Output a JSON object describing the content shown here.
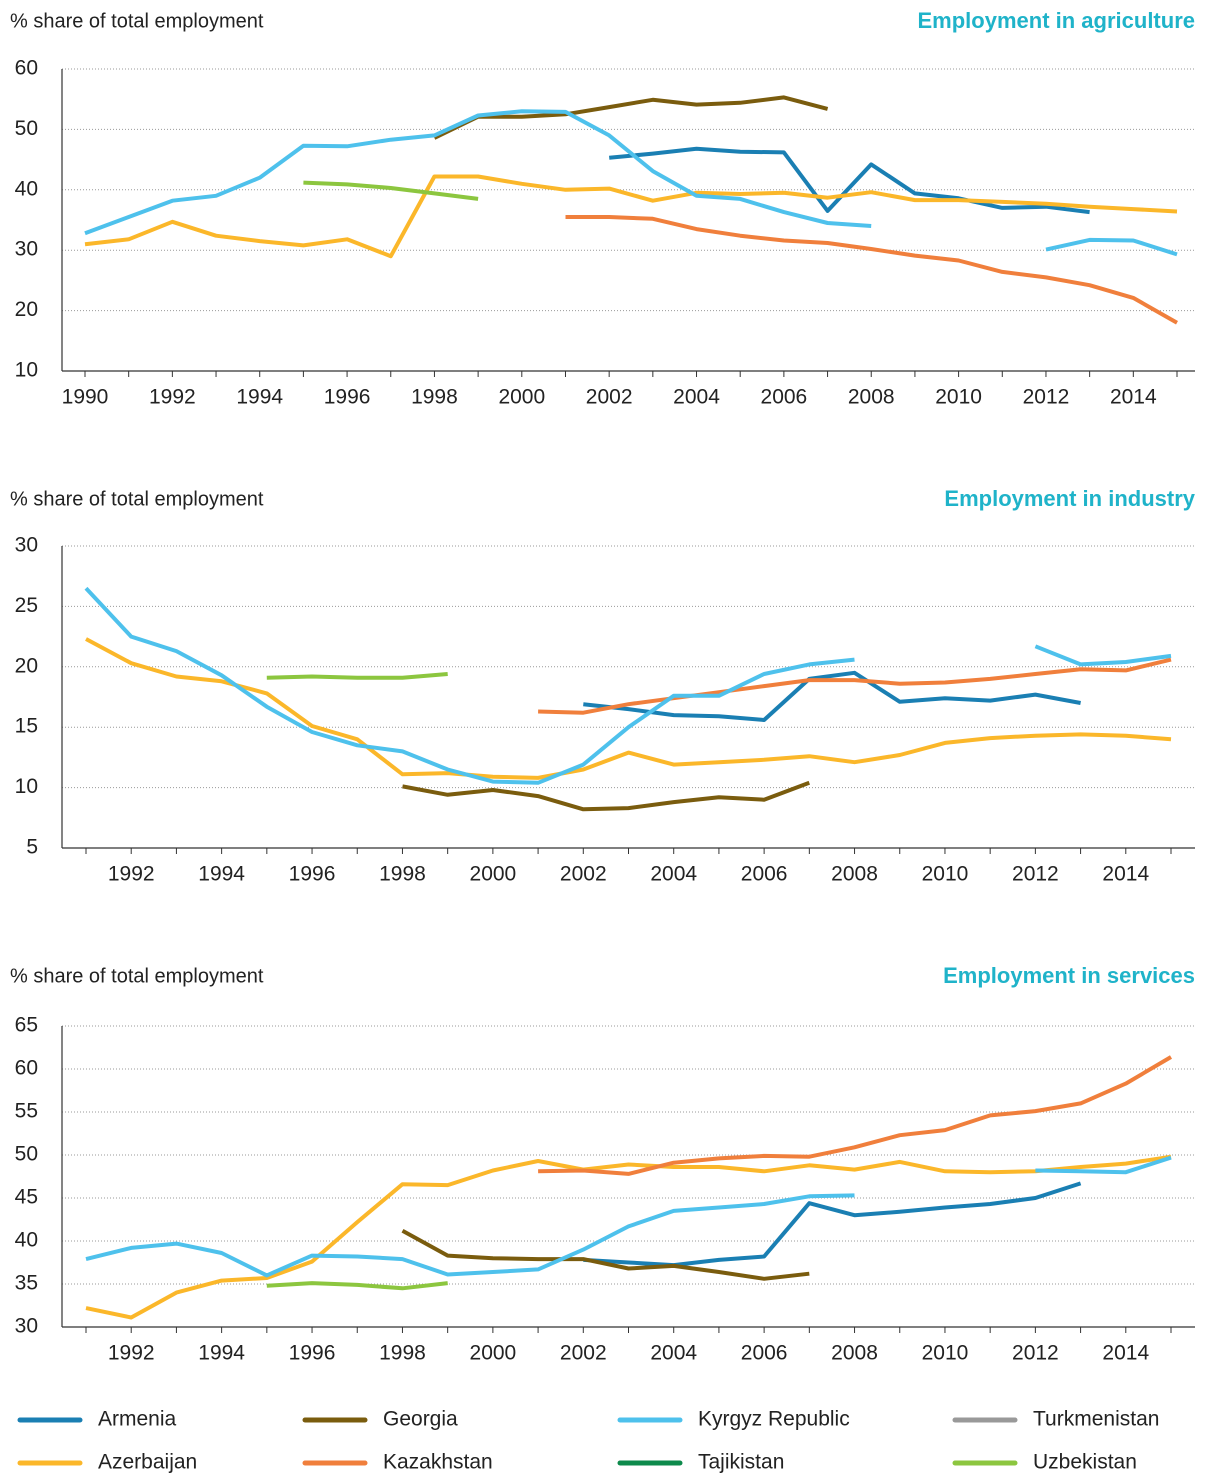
{
  "chart_data": [
    {
      "type": "line",
      "title": "Employment in agriculture",
      "ylabel": "% share of total employment",
      "x": [
        1990,
        1991,
        1992,
        1993,
        1994,
        1995,
        1996,
        1997,
        1998,
        1999,
        2000,
        2001,
        2002,
        2003,
        2004,
        2005,
        2006,
        2007,
        2008,
        2009,
        2010,
        2011,
        2012,
        2013,
        2014,
        2015
      ],
      "xlim": [
        1990,
        2015
      ],
      "xticks": [
        1990,
        1992,
        1994,
        1996,
        1998,
        2000,
        2002,
        2004,
        2006,
        2008,
        2010,
        2012,
        2014
      ],
      "ylim": [
        10,
        60
      ],
      "yticks": [
        10,
        20,
        30,
        40,
        50,
        60
      ],
      "grid": true,
      "series": [
        {
          "name": "Armenia",
          "color": "#1a7fb3",
          "values": [
            null,
            null,
            null,
            null,
            null,
            null,
            null,
            null,
            null,
            null,
            null,
            null,
            45.3,
            46,
            46.8,
            46.3,
            46.2,
            36.5,
            44.2,
            39.4,
            38.6,
            37,
            37.2,
            36.3,
            null,
            null
          ]
        },
        {
          "name": "Azerbaijan",
          "color": "#fbb72a",
          "values": [
            31,
            31.8,
            34.7,
            32.4,
            31.5,
            30.8,
            31.8,
            29,
            42.2,
            42.2,
            41,
            40,
            40.2,
            38.2,
            39.5,
            39.3,
            39.5,
            38.7,
            39.6,
            38.3,
            38.3,
            38,
            37.7,
            37.2,
            36.8,
            36.4
          ]
        },
        {
          "name": "Georgia",
          "color": "#7a5c0e",
          "values": [
            null,
            null,
            null,
            null,
            null,
            null,
            null,
            null,
            48.6,
            52.1,
            52.1,
            52.5,
            53.7,
            54.9,
            54.1,
            54.4,
            55.3,
            53.4,
            null,
            null,
            null,
            null,
            null,
            null,
            null,
            null
          ]
        },
        {
          "name": "Kazakhstan",
          "color": "#f07f3c",
          "values": [
            null,
            null,
            null,
            null,
            null,
            null,
            null,
            null,
            null,
            null,
            null,
            35.5,
            35.5,
            35.2,
            33.5,
            32.4,
            31.6,
            31.2,
            30.2,
            29.1,
            28.3,
            26.4,
            25.5,
            24.2,
            22.1,
            18
          ]
        },
        {
          "name": "Kyrgyz Republic",
          "color": "#4ec1ec",
          "values": [
            32.8,
            35.5,
            38.2,
            39,
            42,
            47.3,
            47.2,
            48.3,
            49,
            52.3,
            53,
            52.9,
            49,
            43.1,
            39,
            38.5,
            36.3,
            34.5,
            34,
            null,
            null,
            null,
            30.1,
            31.7,
            31.6,
            29.3
          ]
        },
        {
          "name": "Tajikistan",
          "color": "#0d8a4b",
          "values": [
            null,
            null,
            null,
            null,
            null,
            null,
            null,
            null,
            null,
            null,
            null,
            null,
            null,
            null,
            null,
            null,
            null,
            null,
            null,
            null,
            null,
            null,
            null,
            null,
            null,
            null
          ]
        },
        {
          "name": "Turkmenistan",
          "color": "#999999",
          "values": [
            null,
            null,
            null,
            null,
            null,
            null,
            null,
            null,
            null,
            null,
            null,
            null,
            null,
            null,
            null,
            null,
            null,
            null,
            null,
            null,
            null,
            null,
            null,
            null,
            null,
            null
          ]
        },
        {
          "name": "Uzbekistan",
          "color": "#8cc63f",
          "values": [
            null,
            null,
            null,
            null,
            null,
            41.2,
            40.9,
            40.3,
            39.4,
            38.5,
            null,
            null,
            null,
            null,
            null,
            null,
            null,
            null,
            null,
            null,
            null,
            null,
            null,
            null,
            null,
            null
          ]
        }
      ]
    },
    {
      "type": "line",
      "title": "Employment in industry",
      "ylabel": "% share of total employment",
      "x": [
        1991,
        1992,
        1993,
        1994,
        1995,
        1996,
        1997,
        1998,
        1999,
        2000,
        2001,
        2002,
        2003,
        2004,
        2005,
        2006,
        2007,
        2008,
        2009,
        2010,
        2011,
        2012,
        2013,
        2014,
        2015
      ],
      "xlim": [
        1991,
        2015
      ],
      "xticks": [
        1992,
        1994,
        1996,
        1998,
        2000,
        2002,
        2004,
        2006,
        2008,
        2010,
        2012,
        2014
      ],
      "ylim": [
        5,
        30
      ],
      "yticks": [
        5,
        10,
        15,
        20,
        25,
        30
      ],
      "grid": true,
      "series": [
        {
          "name": "Armenia",
          "color": "#1a7fb3",
          "values": [
            null,
            null,
            null,
            null,
            null,
            null,
            null,
            null,
            null,
            null,
            null,
            16.9,
            16.5,
            16,
            15.9,
            15.6,
            19,
            19.5,
            17.1,
            17.4,
            17.2,
            17.7,
            17,
            null,
            null
          ]
        },
        {
          "name": "Azerbaijan",
          "color": "#fbb72a",
          "values": [
            22.3,
            20.3,
            19.2,
            18.8,
            17.8,
            15.1,
            14,
            11.1,
            11.2,
            10.9,
            10.8,
            11.5,
            12.9,
            11.9,
            12.1,
            12.3,
            12.6,
            12.1,
            12.7,
            13.7,
            14.1,
            14.3,
            14.4,
            14.3,
            14
          ]
        },
        {
          "name": "Georgia",
          "color": "#7a5c0e",
          "values": [
            null,
            null,
            null,
            null,
            null,
            null,
            null,
            10.1,
            9.4,
            9.8,
            9.3,
            8.2,
            8.3,
            8.8,
            9.2,
            9,
            10.4,
            null,
            null,
            null,
            null,
            null,
            null,
            null,
            null
          ]
        },
        {
          "name": "Kazakhstan",
          "color": "#f07f3c",
          "values": [
            null,
            null,
            null,
            null,
            null,
            null,
            null,
            null,
            null,
            null,
            16.3,
            16.2,
            16.9,
            17.4,
            17.9,
            18.4,
            18.9,
            18.9,
            18.6,
            18.7,
            19,
            19.4,
            19.8,
            19.7,
            20.6
          ]
        },
        {
          "name": "Kyrgyz Republic",
          "color": "#4ec1ec",
          "values": [
            26.5,
            22.5,
            21.3,
            19.3,
            16.7,
            14.6,
            13.5,
            13,
            11.5,
            10.5,
            10.4,
            11.9,
            15,
            17.6,
            17.6,
            19.4,
            20.2,
            20.6,
            null,
            null,
            null,
            21.7,
            20.2,
            20.4,
            20.9
          ]
        },
        {
          "name": "Tajikistan",
          "color": "#0d8a4b",
          "values": [
            null,
            null,
            null,
            null,
            null,
            null,
            null,
            null,
            null,
            null,
            null,
            null,
            null,
            null,
            null,
            null,
            null,
            null,
            null,
            null,
            null,
            null,
            null,
            null,
            null
          ]
        },
        {
          "name": "Turkmenistan",
          "color": "#999999",
          "values": [
            null,
            null,
            null,
            null,
            null,
            null,
            null,
            null,
            null,
            null,
            null,
            null,
            null,
            null,
            null,
            null,
            null,
            null,
            null,
            null,
            null,
            null,
            null,
            null,
            null
          ]
        },
        {
          "name": "Uzbekistan",
          "color": "#8cc63f",
          "values": [
            null,
            null,
            null,
            null,
            19.1,
            19.2,
            19.1,
            19.1,
            19.4,
            null,
            null,
            null,
            null,
            null,
            null,
            null,
            null,
            null,
            null,
            null,
            null,
            null,
            null,
            null,
            null
          ]
        }
      ]
    },
    {
      "type": "line",
      "title": "Employment in services",
      "ylabel": "% share of total employment",
      "x": [
        1991,
        1992,
        1993,
        1994,
        1995,
        1996,
        1997,
        1998,
        1999,
        2000,
        2001,
        2002,
        2003,
        2004,
        2005,
        2006,
        2007,
        2008,
        2009,
        2010,
        2011,
        2012,
        2013,
        2014,
        2015
      ],
      "xlim": [
        1991,
        2015
      ],
      "xticks": [
        1992,
        1994,
        1996,
        1998,
        2000,
        2002,
        2004,
        2006,
        2008,
        2010,
        2012,
        2014
      ],
      "ylim": [
        30,
        65
      ],
      "yticks": [
        30,
        35,
        40,
        45,
        50,
        55,
        60,
        65
      ],
      "grid": true,
      "series": [
        {
          "name": "Armenia",
          "color": "#1a7fb3",
          "values": [
            null,
            null,
            null,
            null,
            null,
            null,
            null,
            null,
            null,
            null,
            null,
            37.8,
            37.5,
            37.2,
            37.8,
            38.2,
            44.4,
            43,
            43.4,
            43.9,
            44.3,
            45,
            46.7,
            null,
            null
          ]
        },
        {
          "name": "Azerbaijan",
          "color": "#fbb72a",
          "values": [
            32.2,
            31.1,
            34,
            35.4,
            35.7,
            37.6,
            42.2,
            46.6,
            46.5,
            48.2,
            49.3,
            48.3,
            48.9,
            48.6,
            48.6,
            48.1,
            48.8,
            48.3,
            49.2,
            48.1,
            48,
            48.1,
            48.6,
            49,
            49.8
          ]
        },
        {
          "name": "Georgia",
          "color": "#7a5c0e",
          "values": [
            null,
            null,
            null,
            null,
            null,
            null,
            null,
            41.2,
            38.3,
            38,
            37.9,
            37.9,
            36.8,
            37.1,
            36.4,
            35.6,
            36.2,
            null,
            null,
            null,
            null,
            null,
            null,
            null,
            null
          ]
        },
        {
          "name": "Kazakhstan",
          "color": "#f07f3c",
          "values": [
            null,
            null,
            null,
            null,
            null,
            null,
            null,
            null,
            null,
            null,
            48.1,
            48.2,
            47.8,
            49.1,
            49.6,
            49.9,
            49.8,
            50.9,
            52.3,
            52.9,
            54.6,
            55.1,
            56,
            58.3,
            61.4
          ]
        },
        {
          "name": "Kyrgyz Republic",
          "color": "#4ec1ec",
          "values": [
            37.9,
            39.2,
            39.7,
            38.6,
            36,
            38.3,
            38.2,
            37.9,
            36.1,
            36.4,
            36.7,
            39,
            41.7,
            43.5,
            43.9,
            44.3,
            45.2,
            45.3,
            null,
            null,
            null,
            48.2,
            48.1,
            48,
            49.7
          ]
        },
        {
          "name": "Tajikistan",
          "color": "#0d8a4b",
          "values": [
            null,
            null,
            null,
            null,
            null,
            null,
            null,
            null,
            null,
            null,
            null,
            null,
            null,
            null,
            null,
            null,
            null,
            null,
            null,
            null,
            null,
            null,
            null,
            null,
            null
          ]
        },
        {
          "name": "Turkmenistan",
          "color": "#999999",
          "values": [
            null,
            null,
            null,
            null,
            null,
            null,
            null,
            null,
            null,
            null,
            null,
            null,
            null,
            null,
            null,
            null,
            null,
            null,
            null,
            null,
            null,
            null,
            null,
            null,
            null
          ]
        },
        {
          "name": "Uzbekistan",
          "color": "#8cc63f",
          "values": [
            null,
            null,
            null,
            null,
            34.8,
            35.1,
            34.9,
            34.5,
            35.1,
            null,
            null,
            null,
            null,
            null,
            null,
            null,
            null,
            null,
            null,
            null,
            null,
            null,
            null,
            null,
            null
          ]
        }
      ]
    }
  ]
}
